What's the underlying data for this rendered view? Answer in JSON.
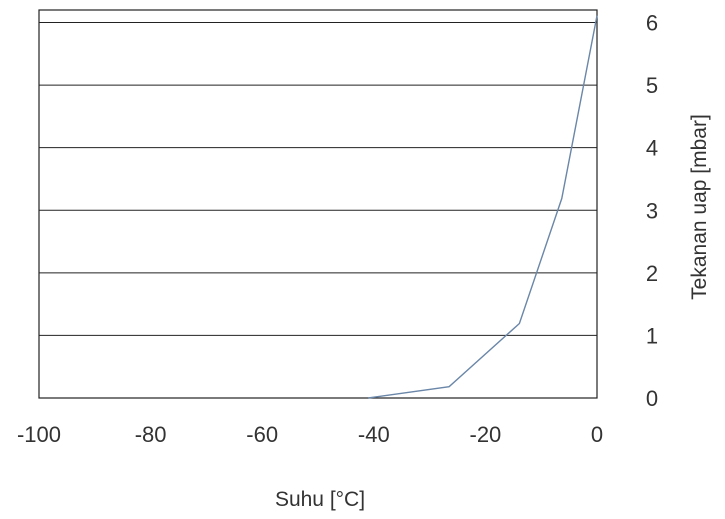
{
  "chart_data": {
    "type": "line",
    "xlabel": "Suhu [°C]",
    "ylabel": "Tekanan uap [mbar]",
    "xlim": [
      -100,
      0
    ],
    "ylim": [
      0,
      6.2
    ],
    "x_ticks": [
      "-100",
      "-80",
      "-60",
      "-40",
      "-20",
      "0"
    ],
    "x_tick_values": [
      -100,
      -80,
      -60,
      -40,
      -20,
      0
    ],
    "y_ticks": [
      "0",
      "1",
      "2",
      "3",
      "4",
      "5",
      "6"
    ],
    "y_tick_values": [
      0,
      1,
      2,
      3,
      4,
      5,
      6
    ],
    "grid": true,
    "y_axis_side": "right",
    "line_color": "#6a86a8",
    "series": [
      {
        "x": [
          -41,
          -26.5,
          -13.9,
          -6.3,
          0
        ],
        "y": [
          0,
          0.18,
          1.19,
          3.19,
          6.11
        ]
      }
    ]
  }
}
